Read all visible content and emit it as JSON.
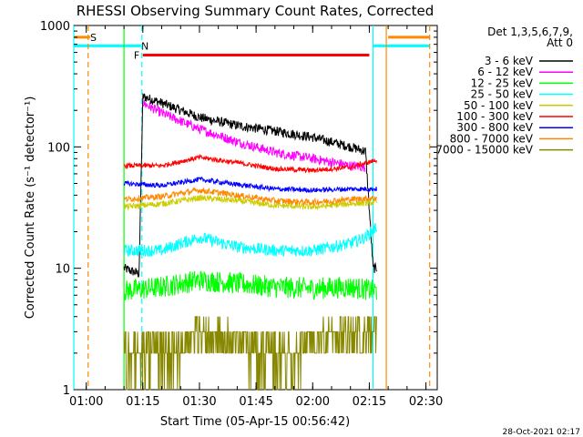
{
  "chart_data": {
    "type": "line",
    "title": "RHESSI Observing Summary Count Rates, Corrected",
    "xlabel": "Start Time (05-Apr-15 00:56:42)",
    "ylabel": "Corrected Count Rate (s⁻¹ detector⁻¹)",
    "yscale": "log",
    "xlim": [
      "00:56:42",
      "02:33:00"
    ],
    "ylim": [
      1,
      1000
    ],
    "x_ticks": [
      "01:00",
      "01:15",
      "01:30",
      "01:45",
      "02:00",
      "02:15",
      "02:30"
    ],
    "y_ticks": [
      "1",
      "10",
      "100",
      "1000"
    ],
    "footer": "28-Oct-2021 02:17",
    "legend": {
      "header": [
        "Det 1,3,5,6,7,9,",
        "Att 0"
      ],
      "placement": "right"
    },
    "data_window": [
      "01:10",
      "02:17"
    ],
    "series": [
      {
        "name": "3 - 6 keV",
        "color": "#000000",
        "x": [
          "01:10",
          "01:14",
          "01:15",
          "01:20",
          "01:30",
          "01:40",
          "01:50",
          "02:00",
          "02:10",
          "02:14",
          "02:16",
          "02:17"
        ],
        "y": [
          10,
          9,
          260,
          230,
          175,
          150,
          135,
          120,
          100,
          92,
          10,
          10
        ]
      },
      {
        "name": "6 - 12 keV",
        "color": "#ff00ff",
        "x": [
          "01:15",
          "01:20",
          "01:30",
          "01:40",
          "01:50",
          "02:00",
          "02:10",
          "02:14"
        ],
        "y": [
          230,
          190,
          140,
          110,
          90,
          80,
          70,
          68
        ]
      },
      {
        "name": "12 - 25 keV",
        "color": "#00ff00",
        "x": [
          "01:10",
          "01:20",
          "01:30",
          "01:40",
          "01:50",
          "02:00",
          "02:10",
          "02:17"
        ],
        "y": [
          6.5,
          7,
          8,
          7.5,
          7,
          6.8,
          7,
          6.5
        ]
      },
      {
        "name": "25 - 50 keV",
        "color": "#00ffff",
        "x": [
          "01:10",
          "01:20",
          "01:25",
          "01:30",
          "01:40",
          "01:50",
          "02:00",
          "02:10",
          "02:14",
          "02:17"
        ],
        "y": [
          14,
          14,
          16,
          18,
          15,
          14,
          14,
          16,
          18,
          22
        ]
      },
      {
        "name": "50 - 100 keV",
        "color": "#cccc00",
        "x": [
          "01:10",
          "01:20",
          "01:30",
          "01:40",
          "01:50",
          "02:00",
          "02:10",
          "02:17"
        ],
        "y": [
          32,
          34,
          38,
          36,
          33,
          32,
          34,
          35
        ]
      },
      {
        "name": "100 - 300 keV",
        "color": "#ff0000",
        "x": [
          "01:10",
          "01:20",
          "01:30",
          "01:40",
          "01:50",
          "02:00",
          "02:10",
          "02:17"
        ],
        "y": [
          70,
          70,
          82,
          74,
          66,
          64,
          68,
          78
        ]
      },
      {
        "name": "300 - 800 keV",
        "color": "#0000ff",
        "x": [
          "01:10",
          "01:20",
          "01:30",
          "01:40",
          "01:50",
          "02:00",
          "02:10",
          "02:17"
        ],
        "y": [
          50,
          48,
          54,
          49,
          45,
          44,
          45,
          45
        ]
      },
      {
        "name": "800 - 7000 keV",
        "color": "#ff8800",
        "x": [
          "01:10",
          "01:20",
          "01:30",
          "01:40",
          "01:50",
          "02:00",
          "02:10",
          "02:17"
        ],
        "y": [
          37,
          39,
          44,
          40,
          36,
          35,
          37,
          38
        ]
      },
      {
        "name": "7000 - 15000 keV",
        "color": "#888800",
        "x": [
          "01:10",
          "01:20",
          "01:30",
          "01:40",
          "01:50",
          "02:00",
          "02:10",
          "02:17"
        ],
        "y": [
          2,
          2,
          3,
          2.5,
          2,
          2.5,
          3,
          3
        ]
      }
    ],
    "flags": [
      {
        "label": "S",
        "color": "#ff8800",
        "spans": [
          [
            "00:56:42",
            "01:01:00"
          ],
          [
            "02:20:00",
            "02:31:00"
          ]
        ],
        "level": 800
      },
      {
        "label": "N",
        "color": "#00ffff",
        "spans": [
          [
            "00:56:42",
            "01:14:30"
          ],
          [
            "02:16:00",
            "02:31:00"
          ]
        ],
        "level": 680
      },
      {
        "label": "F",
        "color": "#ff0000",
        "spans": [
          [
            "01:15:00",
            "02:15:00"
          ]
        ],
        "level": 570
      }
    ],
    "vlines": [
      {
        "x": "00:56:42",
        "color": "#00ffff",
        "style": "solid"
      },
      {
        "x": "01:00:30",
        "color": "#ff8800",
        "style": "dashed"
      },
      {
        "x": "01:10:00",
        "color": "#00ff00",
        "style": "solid"
      },
      {
        "x": "01:14:45",
        "color": "#00ffff",
        "style": "dashed"
      },
      {
        "x": "02:16:00",
        "color": "#00ffff",
        "style": "solid"
      },
      {
        "x": "02:19:30",
        "color": "#ff8800",
        "style": "solid"
      },
      {
        "x": "02:31:00",
        "color": "#ff8800",
        "style": "dashed"
      }
    ]
  }
}
